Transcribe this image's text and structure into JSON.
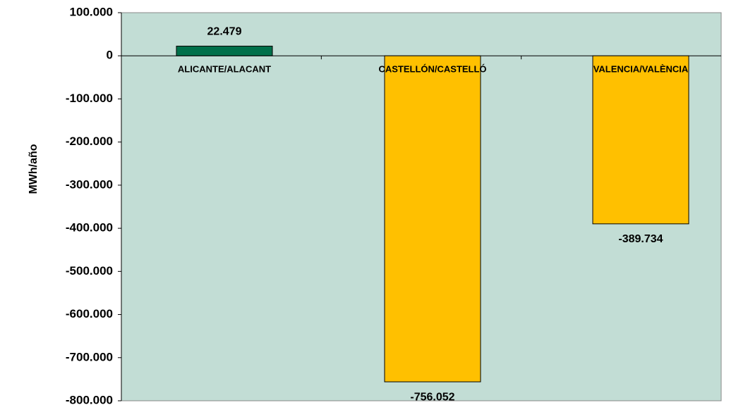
{
  "chart_data": {
    "type": "bar",
    "y_label": "MWh/año",
    "categories": [
      "ALICANTE/ALACANT",
      "CASTELLÓN/CASTELLÓ",
      "VALENCIA/VALÈNCIA"
    ],
    "values": [
      22479,
      -756052,
      -389734
    ],
    "value_labels": [
      "22.479",
      "-756.052",
      "-389.734"
    ],
    "colors": [
      "#00704a",
      "#ffc000",
      "#ffc000"
    ],
    "ylim": [
      -800000,
      100000
    ],
    "yticks": [
      {
        "value": 100000,
        "label": "100.000"
      },
      0,
      {
        "value": -100000,
        "label": "-100.000"
      },
      {
        "value": -200000,
        "label": "-200.000"
      },
      {
        "value": -300000,
        "label": "-300.000"
      },
      {
        "value": -400000,
        "label": "-400.000"
      },
      {
        "value": -500000,
        "label": "-500.000"
      },
      {
        "value": -600000,
        "label": "-600.000"
      },
      {
        "value": -700000,
        "label": "-700.000"
      },
      {
        "value": -800000,
        "label": "-800.000"
      }
    ],
    "plot_background": "#c2ddd5",
    "grid": false
  }
}
